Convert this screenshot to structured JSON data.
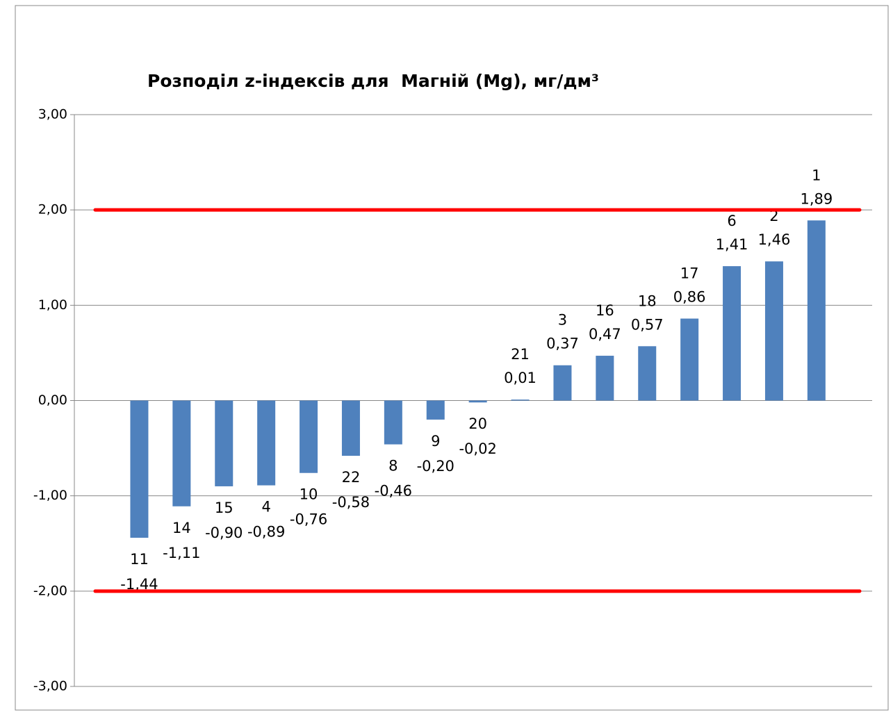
{
  "chart_data": {
    "type": "bar",
    "title": "Розподіл z-індексів для  Магній (Mg), мг/дм³",
    "categories": [
      "11",
      "14",
      "15",
      "4",
      "10",
      "22",
      "8",
      "9",
      "20",
      "21",
      "3",
      "16",
      "18",
      "17",
      "6",
      "2",
      "1"
    ],
    "values": [
      -1.44,
      -1.11,
      -0.9,
      -0.89,
      -0.76,
      -0.58,
      -0.46,
      -0.2,
      -0.02,
      0.01,
      0.37,
      0.47,
      0.57,
      0.86,
      1.41,
      1.46,
      1.89
    ],
    "value_labels": [
      "-1,44",
      "-1,11",
      "-0,90",
      "-0,89",
      "-0,76",
      "-0,58",
      "-0,46",
      "-0,20",
      "-0,02",
      "0,01",
      "0,37",
      "0,47",
      "0,57",
      "0,86",
      "1,41",
      "1,46",
      "1,89"
    ],
    "color": "#4f81bd",
    "ylim": [
      -3,
      3
    ],
    "yticks": [
      {
        "value": -3,
        "label": "-3,00"
      },
      {
        "value": -2,
        "label": "-2,00"
      },
      {
        "value": -1,
        "label": "-1,00"
      },
      {
        "value": 0,
        "label": "0,00"
      },
      {
        "value": 1,
        "label": "1,00"
      },
      {
        "value": 2,
        "label": "2,00"
      },
      {
        "value": 3,
        "label": "3,00"
      }
    ],
    "grid": true,
    "reference_lines": [
      {
        "value": 2,
        "color": "#ff0000"
      },
      {
        "value": -2,
        "color": "#ff0000"
      }
    ]
  }
}
